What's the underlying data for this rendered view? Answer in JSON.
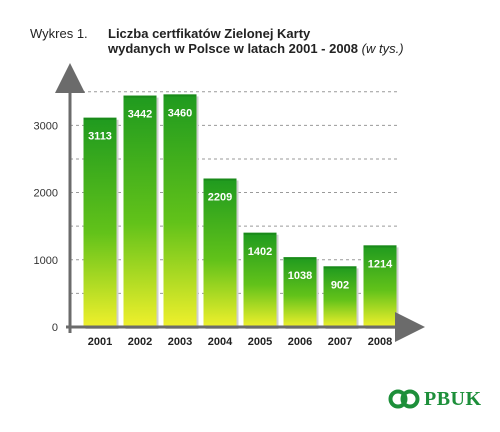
{
  "title": {
    "prefix": "Wykres 1.",
    "line1": "Liczba certfikatów Zielonej Karty",
    "line2": "wydanych w Polsce w latach 2001 - 2008",
    "note": "(w tys.)"
  },
  "logo": {
    "text": "PBUK",
    "icon": "pbuk-logo-icon",
    "color": "#1d8f3a"
  },
  "chart_data": {
    "type": "bar",
    "categories": [
      "2001",
      "2002",
      "2003",
      "2004",
      "2005",
      "2006",
      "2007",
      "2008"
    ],
    "values": [
      3113,
      3442,
      3460,
      2209,
      1402,
      1038,
      902,
      1214
    ],
    "title": "Liczba certfikatów Zielonej Karty wydanych w Polsce w latach 2001 - 2008 (w tys.)",
    "xlabel": "",
    "ylabel": "",
    "ylim": [
      0,
      3600
    ],
    "yticks": [
      0,
      1000,
      2000,
      3000
    ],
    "grid": true,
    "colors": {
      "bar_top": "#1f9a1f",
      "bar_mid": "#62c21a",
      "bar_bottom": "#f0f02c",
      "axis": "#6b6b6b",
      "label_text": "#ffffff"
    }
  }
}
